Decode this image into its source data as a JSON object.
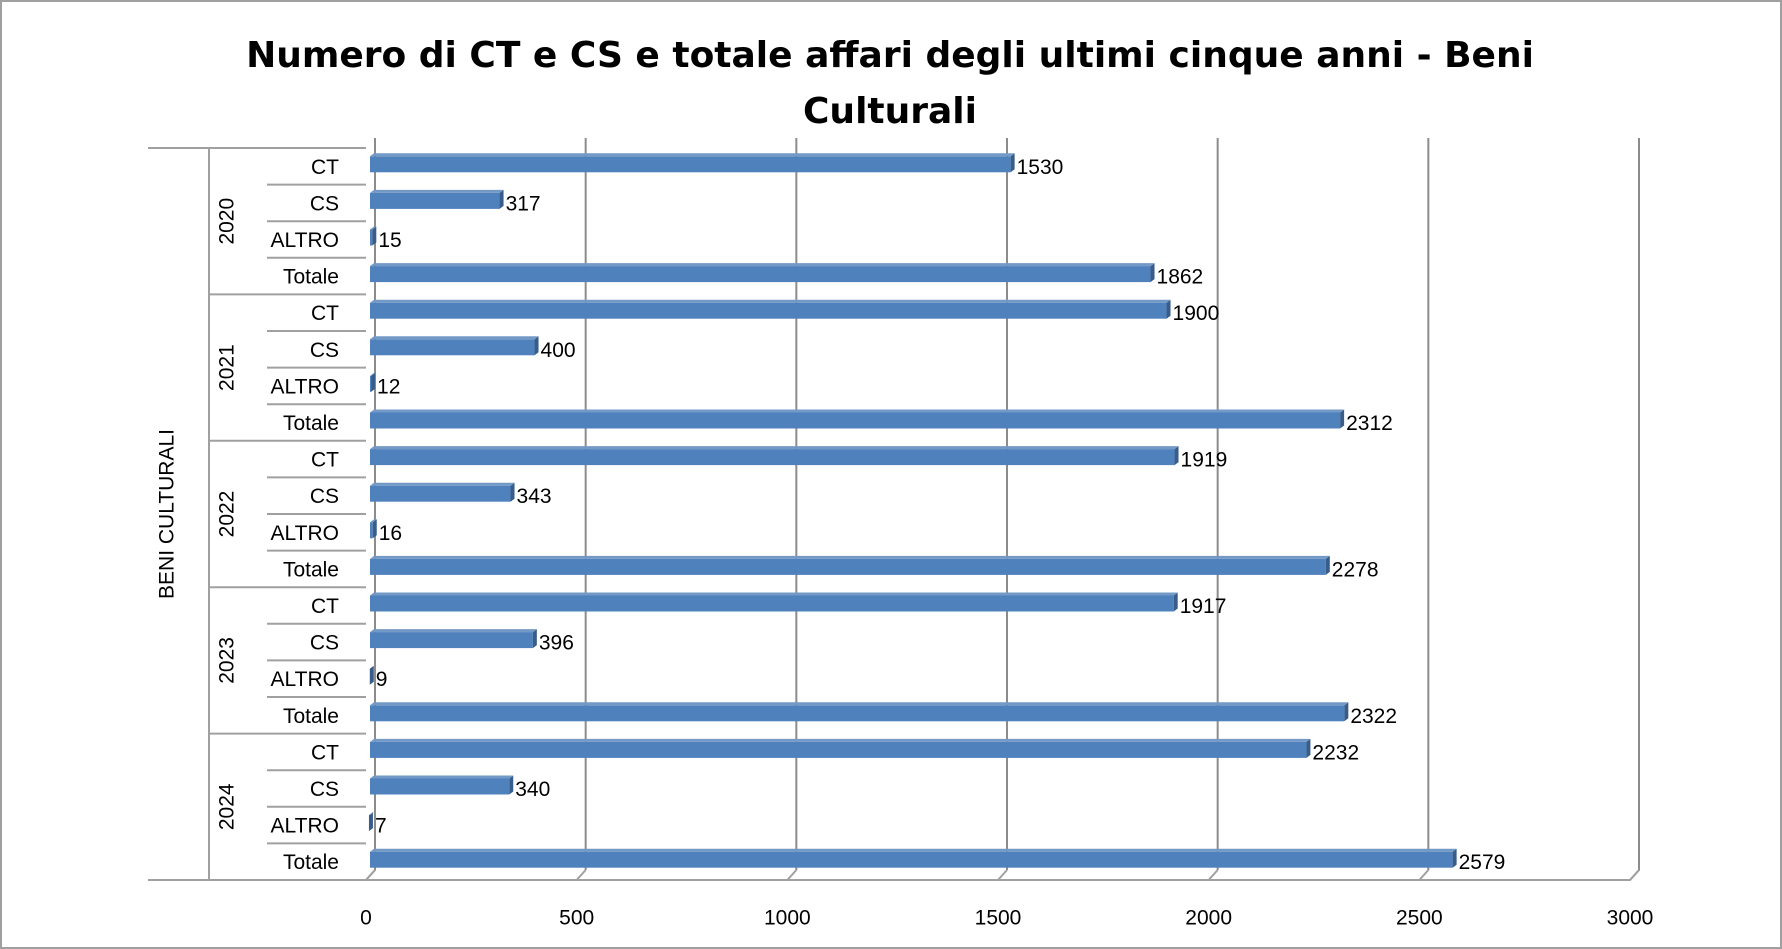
{
  "chart_data": {
    "type": "bar",
    "orientation": "horizontal",
    "title": "Numero di CT e CS e totale affari degli ultimi cinque anni - Beni Culturali",
    "group_label": "BENI CULTURALI",
    "groups": [
      "2020",
      "2021",
      "2022",
      "2023",
      "2024"
    ],
    "categories": [
      "CT",
      "CS",
      "ALTRO",
      "Totale",
      "CT",
      "CS",
      "ALTRO",
      "Totale",
      "CT",
      "CS",
      "ALTRO",
      "Totale",
      "CT",
      "CS",
      "ALTRO",
      "Totale",
      "CT",
      "CS",
      "ALTRO",
      "Totale"
    ],
    "values": [
      1530,
      317,
      15,
      1862,
      1900,
      400,
      12,
      2312,
      1919,
      343,
      16,
      2278,
      1917,
      396,
      9,
      2322,
      2232,
      340,
      7,
      2579
    ],
    "color": "#4f81bd",
    "xlim": [
      0,
      3000
    ],
    "xticks": [
      0,
      500,
      1000,
      1500,
      2000,
      2500,
      3000
    ],
    "grid": true
  }
}
